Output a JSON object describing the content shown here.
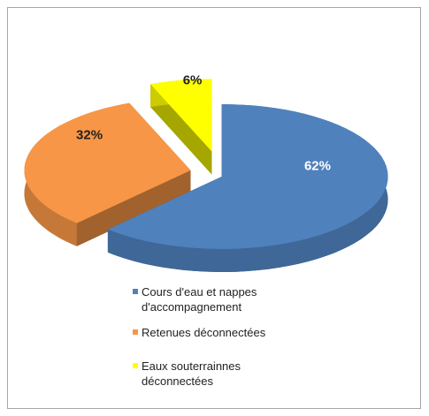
{
  "chart_data": {
    "type": "pie",
    "categories": [
      "Cours d'eau et nappes d'accompagnement",
      "Retenues déconnectées",
      "Eaux souterrainnes déconnectées"
    ],
    "values": [
      62,
      32,
      6
    ],
    "value_labels": [
      "62%",
      "32%",
      "6%"
    ],
    "colors": [
      "#4f81bd",
      "#f79646",
      "#ffff00"
    ],
    "legend": "bottom"
  }
}
